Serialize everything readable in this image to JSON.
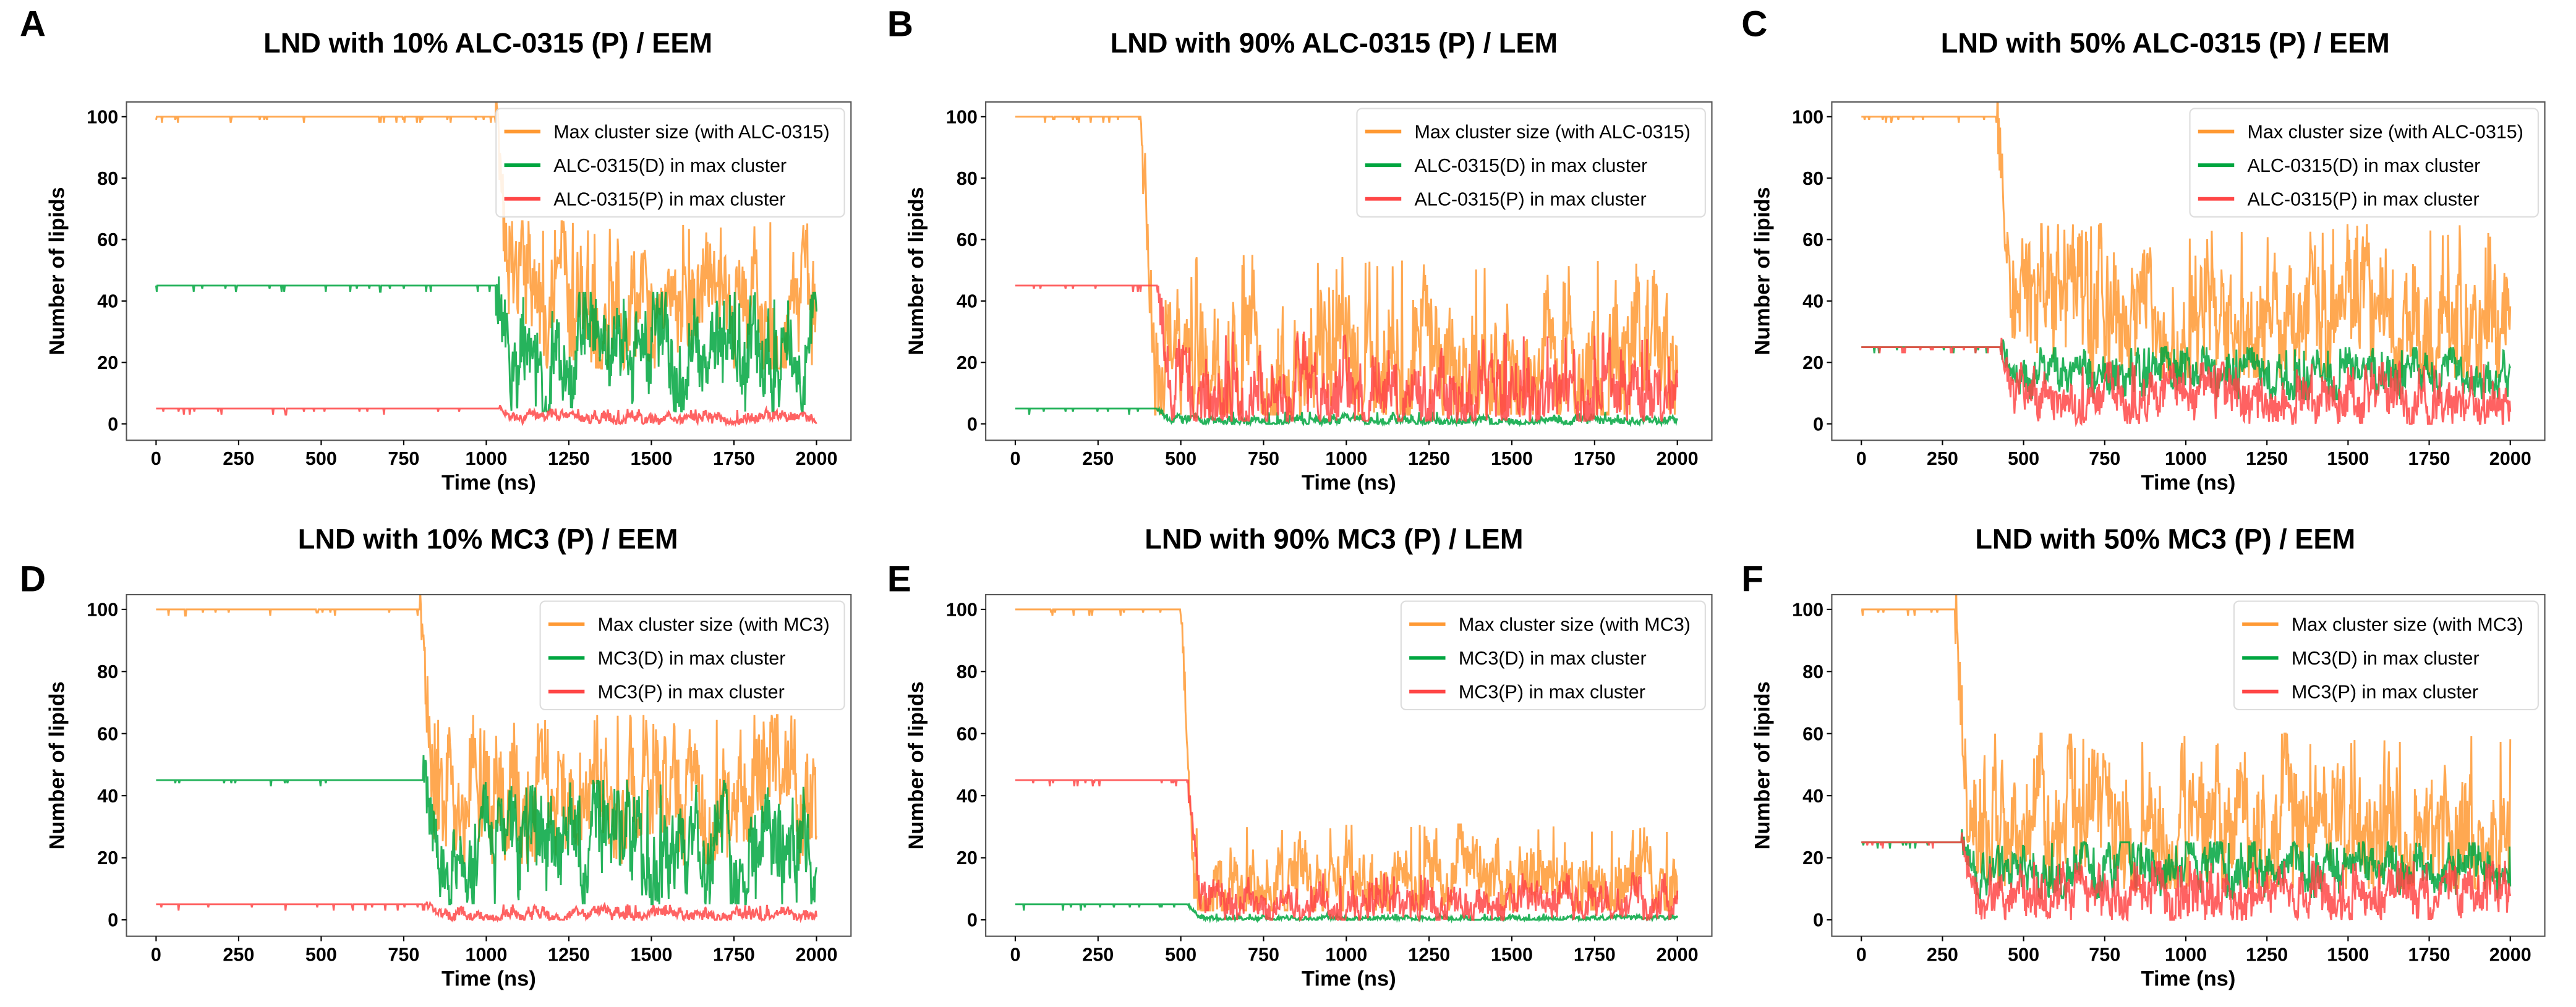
{
  "chart_data": {
    "type": "line",
    "xlabel": "Time (ns)",
    "ylabel": "Number of lipids",
    "xlim": [
      0,
      2000
    ],
    "ylim": [
      0,
      100
    ],
    "xticks": [
      0,
      250,
      500,
      750,
      1000,
      1250,
      1500,
      1750,
      2000
    ],
    "yticks": [
      0,
      20,
      40,
      60,
      80,
      100
    ],
    "grid": false,
    "legend_position": "top-right",
    "colors": {
      "max": "#ff9933",
      "D": "#00a640",
      "P": "#ff4646"
    },
    "panels": [
      {
        "letter": "A",
        "title": "LND with 10% ALC-0315 (P) / EEM",
        "series": [
          {
            "name": "Max cluster size (with ALC-0315)",
            "key": "max",
            "initial": 100,
            "transition_ns": 1030,
            "final_mean": 40,
            "final_min": 18,
            "final_max": 66
          },
          {
            "name": "ALC-0315(D) in max cluster",
            "key": "D",
            "initial": 45,
            "transition_ns": 1030,
            "final_mean": 24,
            "final_min": 4,
            "final_max": 43
          },
          {
            "name": "ALC-0315(P) in max cluster",
            "key": "P",
            "initial": 5,
            "transition_ns": 1040,
            "final_mean": 2,
            "final_min": 0,
            "final_max": 5
          }
        ]
      },
      {
        "letter": "B",
        "title": "LND with 90% ALC-0315 (P) / LEM",
        "series": [
          {
            "name": "Max cluster size (with ALC-0315)",
            "key": "max",
            "initial": 100,
            "transition_ns": 380,
            "final_mean": 18,
            "final_min": 3,
            "final_max": 55
          },
          {
            "name": "ALC-0315(D) in max cluster",
            "key": "D",
            "initial": 5,
            "transition_ns": 430,
            "final_mean": 1,
            "final_min": 0,
            "final_max": 4
          },
          {
            "name": "ALC-0315(P) in max cluster",
            "key": "P",
            "initial": 45,
            "transition_ns": 430,
            "final_mean": 10,
            "final_min": 1,
            "final_max": 30
          }
        ]
      },
      {
        "letter": "C",
        "title": "LND with 50% ALC-0315 (P) / EEM",
        "series": [
          {
            "name": "Max cluster size (with ALC-0315)",
            "key": "max",
            "initial": 100,
            "transition_ns": 420,
            "final_mean": 36,
            "final_min": 15,
            "final_max": 65
          },
          {
            "name": "ALC-0315(D) in max cluster",
            "key": "D",
            "initial": 25,
            "transition_ns": 430,
            "final_mean": 17,
            "final_min": 8,
            "final_max": 25
          },
          {
            "name": "ALC-0315(P) in max cluster",
            "key": "P",
            "initial": 25,
            "transition_ns": 430,
            "final_mean": 9,
            "final_min": 0,
            "final_max": 20
          }
        ]
      },
      {
        "letter": "D",
        "title": "LND with 10% MC3 (P) / EEM",
        "series": [
          {
            "name": "Max cluster size (with MC3)",
            "key": "max",
            "initial": 100,
            "transition_ns": 800,
            "final_mean": 40,
            "final_min": 18,
            "final_max": 66
          },
          {
            "name": "MC3(D) in max cluster",
            "key": "D",
            "initial": 45,
            "transition_ns": 810,
            "final_mean": 25,
            "final_min": 5,
            "final_max": 45
          },
          {
            "name": "MC3(P) in max cluster",
            "key": "P",
            "initial": 5,
            "transition_ns": 820,
            "final_mean": 2,
            "final_min": 0,
            "final_max": 5
          }
        ]
      },
      {
        "letter": "E",
        "title": "LND with 90% MC3 (P) / LEM",
        "series": [
          {
            "name": "Max cluster size (with MC3)",
            "key": "max",
            "initial": 100,
            "transition_ns": 500,
            "final_mean": 11,
            "final_min": 3,
            "final_max": 31
          },
          {
            "name": "MC3(D) in max cluster",
            "key": "D",
            "initial": 5,
            "transition_ns": 520,
            "final_mean": 0.5,
            "final_min": 0,
            "final_max": 2
          },
          {
            "name": "MC3(P) in max cluster",
            "key": "P",
            "initial": 45,
            "transition_ns": 520,
            "final_mean": 6,
            "final_min": 0,
            "final_max": 15
          }
        ]
      },
      {
        "letter": "F",
        "title": "LND with 50% MC3 (P) / EEM",
        "series": [
          {
            "name": "Max cluster size (with MC3)",
            "key": "max",
            "initial": 100,
            "transition_ns": 290,
            "final_mean": 30,
            "final_min": 10,
            "final_max": 60
          },
          {
            "name": "MC3(D) in max cluster",
            "key": "D",
            "initial": 25,
            "transition_ns": 310,
            "final_mean": 17,
            "final_min": 7,
            "final_max": 25
          },
          {
            "name": "MC3(P) in max cluster",
            "key": "P",
            "initial": 25,
            "transition_ns": 310,
            "final_mean": 8,
            "final_min": 0,
            "final_max": 19
          }
        ]
      }
    ]
  }
}
